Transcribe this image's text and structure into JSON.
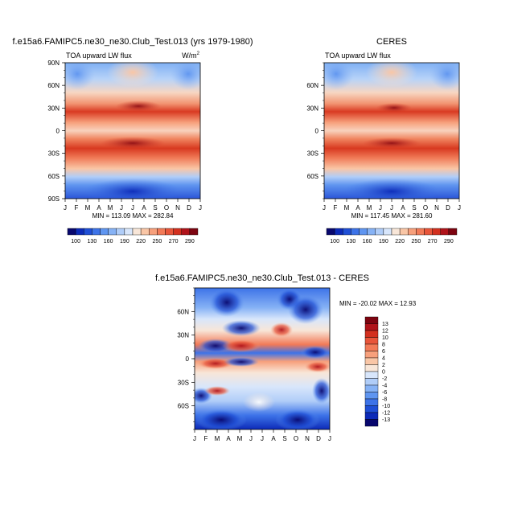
{
  "chart_data": [
    {
      "type": "heatmap",
      "title": "f.e15a6.FAMIPC5.ne30_ne30.Club_Test.013 (yrs 1979-1980)",
      "subtitle_left": "TOA upward LW flux",
      "units": "W/m",
      "units_exp": "2",
      "x_ticks": [
        "J",
        "F",
        "M",
        "A",
        "M",
        "J",
        "J",
        "A",
        "S",
        "O",
        "N",
        "D",
        "J"
      ],
      "y_ticks": [
        "90N",
        "60N",
        "30N",
        "0",
        "30S",
        "60S",
        "90S"
      ],
      "stats": "MIN = 113.09 MAX = 282.84",
      "min": 113.09,
      "max": 282.84
    },
    {
      "type": "heatmap",
      "title": "CERES",
      "subtitle_left": "TOA upward LW flux",
      "x_ticks": [
        "J",
        "F",
        "M",
        "A",
        "M",
        "J",
        "J",
        "A",
        "S",
        "O",
        "N",
        "D",
        "J"
      ],
      "y_ticks": [
        "60N",
        "30N",
        "0",
        "30S",
        "60S"
      ],
      "stats": "MIN = 117.45 MAX = 281.60",
      "min": 117.45,
      "max": 281.6
    },
    {
      "type": "heatmap",
      "title": "f.e15a6.FAMIPC5.ne30_ne30.Club_Test.013 - CERES",
      "x_ticks": [
        "J",
        "F",
        "M",
        "A",
        "M",
        "J",
        "J",
        "A",
        "S",
        "O",
        "N",
        "D",
        "J"
      ],
      "y_ticks": [
        "60N",
        "30N",
        "0",
        "30S",
        "60S"
      ],
      "stats": "MIN = -20.02 MAX =  12.93",
      "min": -20.02,
      "max": 12.93
    }
  ],
  "colorbar_top": {
    "labels": [
      "100",
      "130",
      "160",
      "190",
      "220",
      "250",
      "270",
      "290"
    ],
    "colors": [
      "#08076e",
      "#0c2ab8",
      "#1f4fd6",
      "#3d73e8",
      "#5f95f0",
      "#86b2f5",
      "#b0cdf8",
      "#d8e6fb",
      "#f8e6d8",
      "#f9c6a6",
      "#f7a07c",
      "#f27a57",
      "#e8553a",
      "#d3301f",
      "#b0131a",
      "#7d0410"
    ]
  },
  "colorbar_diff": {
    "labels": [
      "13",
      "12",
      "10",
      "8",
      "6",
      "4",
      "2",
      "0",
      "-2",
      "-4",
      "-6",
      "-8",
      "-10",
      "-12",
      "-13"
    ],
    "colors": [
      "#7d0410",
      "#b0131a",
      "#d3301f",
      "#e8553a",
      "#f27a57",
      "#f7a07c",
      "#f9c6a6",
      "#f8e6d8",
      "#d8e6fb",
      "#b0cdf8",
      "#86b2f5",
      "#5f95f0",
      "#3d73e8",
      "#1f4fd6",
      "#0c2ab8",
      "#08076e"
    ]
  }
}
